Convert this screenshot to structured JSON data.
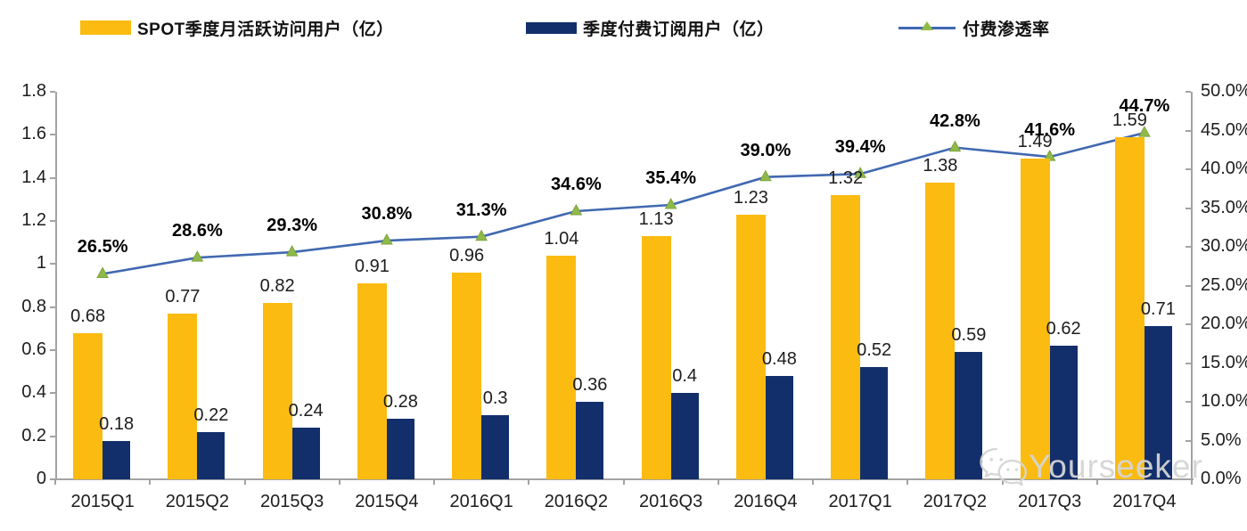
{
  "legend": [
    {
      "label": "SPOT季度月活跃访问用户（亿）",
      "type": "bar",
      "color": "#FBBB10"
    },
    {
      "label": "季度付费订阅用户（亿）",
      "type": "bar",
      "color": "#132F6B"
    },
    {
      "label": "付费渗透率",
      "type": "line",
      "color": "#4169B1",
      "marker_color": "#8FBA4A"
    }
  ],
  "chart_data": {
    "type": "bar",
    "subtype": "grouped-bars-with-line",
    "categories": [
      "2015Q1",
      "2015Q2",
      "2015Q3",
      "2015Q4",
      "2016Q1",
      "2016Q2",
      "2016Q3",
      "2016Q4",
      "2017Q1",
      "2017Q2",
      "2017Q3",
      "2017Q4"
    ],
    "series": [
      {
        "name": "SPOT季度月活跃访问用户（亿）",
        "type": "bar",
        "axis": "left",
        "color": "#FBBB10",
        "values": [
          0.68,
          0.77,
          0.82,
          0.91,
          0.96,
          1.04,
          1.13,
          1.23,
          1.32,
          1.38,
          1.49,
          1.59
        ],
        "labels": [
          "0.68",
          "0.77",
          "0.82",
          "0.91",
          "0.96",
          "1.04",
          "1.13",
          "1.23",
          "1.32",
          "1.38",
          "1.49",
          "1.59"
        ]
      },
      {
        "name": "季度付费订阅用户（亿）",
        "type": "bar",
        "axis": "left",
        "color": "#132F6B",
        "values": [
          0.18,
          0.22,
          0.24,
          0.28,
          0.3,
          0.36,
          0.4,
          0.48,
          0.52,
          0.59,
          0.62,
          0.71
        ],
        "labels": [
          "0.18",
          "0.22",
          "0.24",
          "0.28",
          "0.3",
          "0.36",
          "0.4",
          "0.48",
          "0.52",
          "0.59",
          "0.62",
          "0.71"
        ]
      },
      {
        "name": "付费渗透率",
        "type": "line",
        "axis": "right",
        "color": "#4169B1",
        "marker": "triangle",
        "marker_color": "#8FBA4A",
        "values": [
          26.5,
          28.6,
          29.3,
          30.8,
          31.3,
          34.6,
          35.4,
          39.0,
          39.4,
          42.8,
          41.6,
          44.7
        ],
        "labels": [
          "26.5%",
          "28.6%",
          "29.3%",
          "30.8%",
          "31.3%",
          "34.6%",
          "35.4%",
          "39.0%",
          "39.4%",
          "42.8%",
          "41.6%",
          "44.7%"
        ]
      }
    ],
    "left_axis": {
      "min": 0,
      "max": 1.8,
      "tick_values": [
        0,
        0.2,
        0.4,
        0.6,
        0.8,
        1,
        1.2,
        1.4,
        1.6,
        1.8
      ],
      "tick_labels": [
        "0",
        "0.2",
        "0.4",
        "0.6",
        "0.8",
        "1",
        "1.2",
        "1.4",
        "1.6",
        "1.8"
      ]
    },
    "right_axis": {
      "min": 0,
      "max": 50,
      "tick_values": [
        0,
        5,
        10,
        15,
        20,
        25,
        30,
        35,
        40,
        45,
        50
      ],
      "tick_labels": [
        "0.0%",
        "5.0%",
        "10.0%",
        "15.0%",
        "20.0%",
        "25.0%",
        "30.0%",
        "35.0%",
        "40.0%",
        "45.0%",
        "50.0%"
      ]
    },
    "grid": false,
    "legend_position": "top"
  },
  "watermark": {
    "text": "Yourseeker",
    "icon": "wechat-icon"
  }
}
